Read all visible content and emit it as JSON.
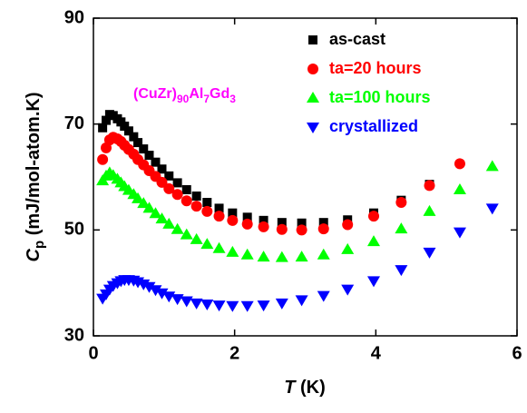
{
  "chart_data": {
    "type": "scatter",
    "x_label": [
      {
        "text": "T",
        "italic": true
      },
      {
        "text": " (K)"
      }
    ],
    "y_label": [
      {
        "text": "C",
        "italic": true
      },
      {
        "text": "p",
        "sub": true
      },
      {
        "text": " (mJ/mol-atom.K)"
      }
    ],
    "annotation": [
      {
        "text": "(CuZr)"
      },
      {
        "text": "90",
        "sub": true
      },
      {
        "text": "Al"
      },
      {
        "text": "7",
        "sub": true
      },
      {
        "text": "Gd"
      },
      {
        "text": "3",
        "sub": true
      }
    ],
    "annotation_color": "#ff00ff",
    "xlim": [
      0,
      6
    ],
    "xticks": [
      0,
      2,
      4,
      6
    ],
    "ylim": [
      30,
      90
    ],
    "yticks": [
      30,
      50,
      70,
      90
    ],
    "legend": "upper right",
    "series": [
      {
        "name": "as-cast",
        "color": "#000000",
        "marker": "square",
        "x": [
          0.13,
          0.18,
          0.23,
          0.28,
          0.34,
          0.39,
          0.44,
          0.5,
          0.57,
          0.63,
          0.71,
          0.79,
          0.88,
          0.97,
          1.07,
          1.19,
          1.32,
          1.46,
          1.61,
          1.78,
          1.97,
          2.18,
          2.41,
          2.67,
          2.95,
          3.26,
          3.6,
          3.97,
          4.36,
          4.76
        ],
        "values": [
          69.3,
          70.7,
          71.8,
          71.6,
          71.0,
          70.4,
          69.6,
          68.7,
          67.6,
          66.5,
          65.3,
          64.1,
          62.8,
          61.5,
          60.2,
          58.9,
          57.6,
          56.4,
          55.2,
          54.1,
          53.2,
          52.4,
          51.8,
          51.4,
          51.3,
          51.4,
          51.9,
          53.2,
          55.6,
          58.6
        ]
      },
      {
        "name": "ta=20 hours",
        "color": "#ff0000",
        "marker": "circle",
        "x": [
          0.13,
          0.18,
          0.23,
          0.28,
          0.34,
          0.39,
          0.44,
          0.5,
          0.57,
          0.63,
          0.71,
          0.79,
          0.88,
          0.97,
          1.07,
          1.19,
          1.32,
          1.46,
          1.61,
          1.78,
          1.97,
          2.18,
          2.41,
          2.67,
          2.95,
          3.26,
          3.6,
          3.97,
          4.36,
          4.76,
          5.19
        ],
        "values": [
          63.3,
          65.5,
          67.0,
          67.5,
          67.2,
          66.7,
          66.0,
          65.2,
          64.3,
          63.3,
          62.3,
          61.2,
          60.1,
          59.0,
          57.8,
          56.7,
          55.5,
          54.5,
          53.5,
          52.6,
          51.8,
          51.1,
          50.6,
          50.1,
          50.0,
          50.2,
          51.0,
          52.6,
          55.2,
          58.4,
          62.5
        ]
      },
      {
        "name": "ta=100 hours",
        "color": "#00ff00",
        "marker": "triangle-up",
        "x": [
          0.13,
          0.18,
          0.23,
          0.28,
          0.34,
          0.39,
          0.44,
          0.5,
          0.57,
          0.63,
          0.71,
          0.79,
          0.88,
          0.97,
          1.07,
          1.19,
          1.32,
          1.46,
          1.61,
          1.78,
          1.97,
          2.18,
          2.41,
          2.67,
          2.95,
          3.26,
          3.6,
          3.97,
          4.36,
          4.76,
          5.19,
          5.65
        ],
        "values": [
          59.3,
          60.2,
          60.8,
          60.3,
          59.6,
          58.9,
          58.2,
          57.5,
          56.7,
          55.9,
          55.0,
          54.1,
          53.1,
          52.1,
          51.1,
          50.1,
          49.1,
          48.2,
          47.3,
          46.5,
          45.8,
          45.3,
          44.9,
          44.8,
          44.9,
          45.3,
          46.3,
          47.8,
          50.2,
          53.5,
          57.6,
          62.0
        ]
      },
      {
        "name": "crystallized",
        "color": "#0000ff",
        "marker": "triangle-down",
        "x": [
          0.13,
          0.18,
          0.23,
          0.28,
          0.34,
          0.39,
          0.44,
          0.5,
          0.57,
          0.63,
          0.71,
          0.79,
          0.88,
          0.97,
          1.07,
          1.19,
          1.32,
          1.46,
          1.61,
          1.78,
          1.97,
          2.18,
          2.41,
          2.67,
          2.95,
          3.26,
          3.6,
          3.97,
          4.36,
          4.76,
          5.19,
          5.65
        ],
        "values": [
          37.1,
          37.9,
          38.8,
          39.5,
          40.0,
          40.4,
          40.6,
          40.6,
          40.5,
          40.2,
          39.8,
          39.3,
          38.7,
          38.1,
          37.5,
          37.0,
          36.6,
          36.2,
          36.0,
          35.8,
          35.7,
          35.7,
          35.8,
          36.2,
          36.8,
          37.6,
          38.8,
          40.4,
          42.5,
          45.8,
          49.6,
          54.1
        ]
      }
    ]
  }
}
